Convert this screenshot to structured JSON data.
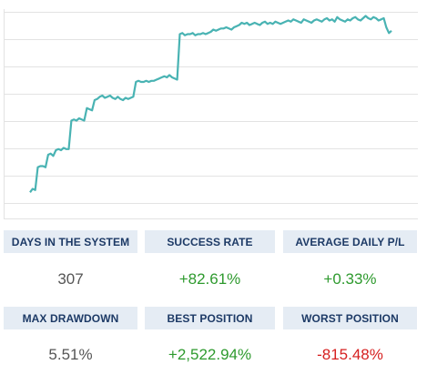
{
  "colors": {
    "line": "#49b3b3",
    "grid": "#e3e3e3",
    "header_bg": "#e5ecf4",
    "header_text": "#1d3a66",
    "neutral": "#555555",
    "positive": "#2e9a2e",
    "negative": "#d62020"
  },
  "chart_data": {
    "type": "line",
    "title": "",
    "xlabel": "",
    "ylabel": "",
    "grid": true,
    "x": [
      0,
      1,
      2,
      3,
      4,
      5,
      6,
      7,
      8,
      9,
      10,
      11,
      12,
      13,
      14,
      15,
      16,
      17,
      18,
      19,
      20,
      21,
      22,
      23,
      24,
      25,
      26,
      27,
      28,
      29,
      30,
      31,
      32,
      33,
      34,
      35,
      36,
      37,
      38,
      39,
      40,
      41,
      42,
      43,
      44,
      45,
      46,
      47,
      48,
      49,
      50,
      51,
      52,
      53,
      54,
      55,
      56,
      57,
      58,
      59,
      60,
      61,
      62,
      63,
      64,
      65,
      66,
      67,
      68,
      69,
      70,
      71,
      72,
      73,
      74,
      75,
      76,
      77,
      78,
      79,
      80,
      81,
      82,
      83,
      84,
      85,
      86,
      87,
      88,
      89,
      90,
      91,
      92,
      93,
      94,
      95,
      96,
      97,
      98,
      99,
      100,
      101,
      102,
      103,
      104,
      105,
      106,
      107,
      108,
      109,
      110,
      111,
      112,
      113,
      114,
      115,
      116,
      117,
      118,
      119,
      120,
      121,
      122,
      123,
      124,
      125,
      126,
      127,
      128,
      129,
      130,
      131,
      132,
      133,
      134,
      135,
      136,
      137,
      138,
      139,
      140
    ],
    "series": [
      {
        "values": [
          3,
          6,
          5,
          25,
          26,
          26,
          25,
          36,
          37,
          35,
          40,
          41,
          40,
          42,
          41,
          41,
          66,
          67,
          66,
          68,
          67,
          66,
          77,
          76,
          75,
          84,
          85,
          87,
          88,
          86,
          87,
          88,
          86,
          85,
          87,
          85,
          84,
          86,
          85,
          86,
          87,
          100,
          101,
          100,
          100,
          101,
          100,
          101,
          101,
          102,
          103,
          104,
          105,
          104,
          106,
          104,
          103,
          102,
          142,
          143,
          141,
          142,
          142,
          143,
          141,
          142,
          142,
          143,
          142,
          143,
          144,
          146,
          145,
          146,
          147,
          147,
          148,
          147,
          146,
          148,
          149,
          150,
          152,
          151,
          152,
          150,
          151,
          152,
          151,
          150,
          152,
          153,
          151,
          152,
          151,
          153,
          152,
          151,
          152,
          153,
          154,
          153,
          155,
          154,
          153,
          152,
          155,
          154,
          153,
          152,
          154,
          155,
          154,
          153,
          155,
          156,
          154,
          155,
          153,
          157,
          155,
          154,
          153,
          155,
          154,
          156,
          157,
          155,
          154,
          156,
          158,
          156,
          155,
          157,
          156,
          154,
          155,
          156,
          148,
          143,
          145
        ]
      }
    ],
    "xlim": [
      0,
      140
    ],
    "ylim": [
      0,
      160
    ]
  },
  "stats": {
    "days_in_system": {
      "label": "DAYS IN THE SYSTEM",
      "value": "307"
    },
    "success_rate": {
      "label": "SUCCESS RATE",
      "value": "+82.61%"
    },
    "average_daily_pl": {
      "label": "AVERAGE DAILY P/L",
      "value": "+0.33%"
    },
    "max_drawdown": {
      "label": "MAX DRAWDOWN",
      "value": "5.51%"
    },
    "best_position": {
      "label": "BEST POSITION",
      "value": "+2,522.94%"
    },
    "worst_position": {
      "label": "WORST POSITION",
      "value": "-815.48%"
    }
  }
}
